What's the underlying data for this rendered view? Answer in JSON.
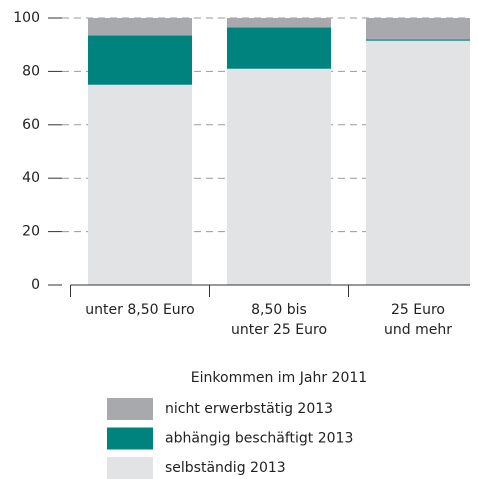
{
  "chart_data": {
    "type": "stacked_bar",
    "categories": [
      "unter 8,50 Euro",
      "8,50 bis\nunter 25 Euro",
      "25 Euro\nund mehr"
    ],
    "series": [
      {
        "name": "selbständig 2013",
        "color": "#e2e3e4",
        "values": [
          75,
          81,
          91.5
        ]
      },
      {
        "name": "abhängig beschäftigt 2013",
        "color": "#00827f",
        "values": [
          18.5,
          15.5,
          0.5
        ]
      },
      {
        "name": "nicht erwerbstätig 2013",
        "color": "#a7a9ac",
        "values": [
          6.5,
          3.5,
          8
        ]
      }
    ],
    "xlabel": "Einkommen im Jahr 2011",
    "ylim": [
      0,
      100
    ],
    "yticks": [
      0,
      20,
      40,
      60,
      80,
      100
    ],
    "grid": true
  }
}
